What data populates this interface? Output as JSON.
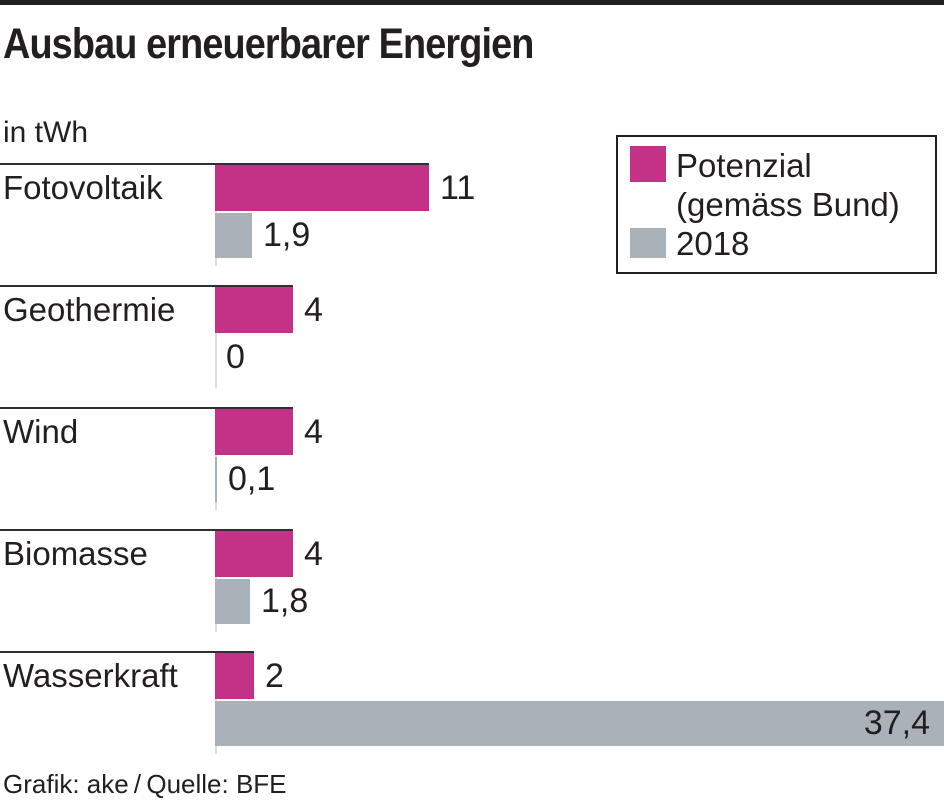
{
  "page": {
    "title": "Ausbau erneuerbarer Energien",
    "unit_label": "in tWh",
    "footer": "Grafik: ake / Quelle: BFE"
  },
  "legend": {
    "potenzial_label": "Potenzial\n(gemäss Bund)",
    "year_label": "2018"
  },
  "colors": {
    "potenzial": "#c33286",
    "year2018": "#a9b2b8",
    "text": "#231f20",
    "row_line": "#332f30",
    "zero_line": "#dcdcdc",
    "top_rule": "#231f20"
  },
  "chart_data": {
    "type": "bar",
    "orientation": "horizontal",
    "title": "Ausbau erneuerbarer Energien",
    "xlabel": "in tWh",
    "unit": "tWh",
    "categories": [
      "Fotovoltaik",
      "Geothermie",
      "Wind",
      "Biomasse",
      "Wasserkraft"
    ],
    "series": [
      {
        "name": "Potenzial (gemäss Bund)",
        "color": "#c33286",
        "values": [
          11,
          4,
          4,
          4,
          2
        ],
        "labels": [
          "11",
          "4",
          "4",
          "4",
          "2"
        ]
      },
      {
        "name": "2018",
        "color": "#a9b2b8",
        "values": [
          1.9,
          0,
          0.1,
          1.8,
          37.4
        ],
        "labels": [
          "1,9",
          "0",
          "0,1",
          "1,8",
          "37,4"
        ]
      }
    ],
    "xlim": [
      0,
      37.4
    ],
    "grid": false,
    "legend_position": "top-right",
    "value_labels_shown": true,
    "source": "Grafik: ake / Quelle: BFE"
  }
}
